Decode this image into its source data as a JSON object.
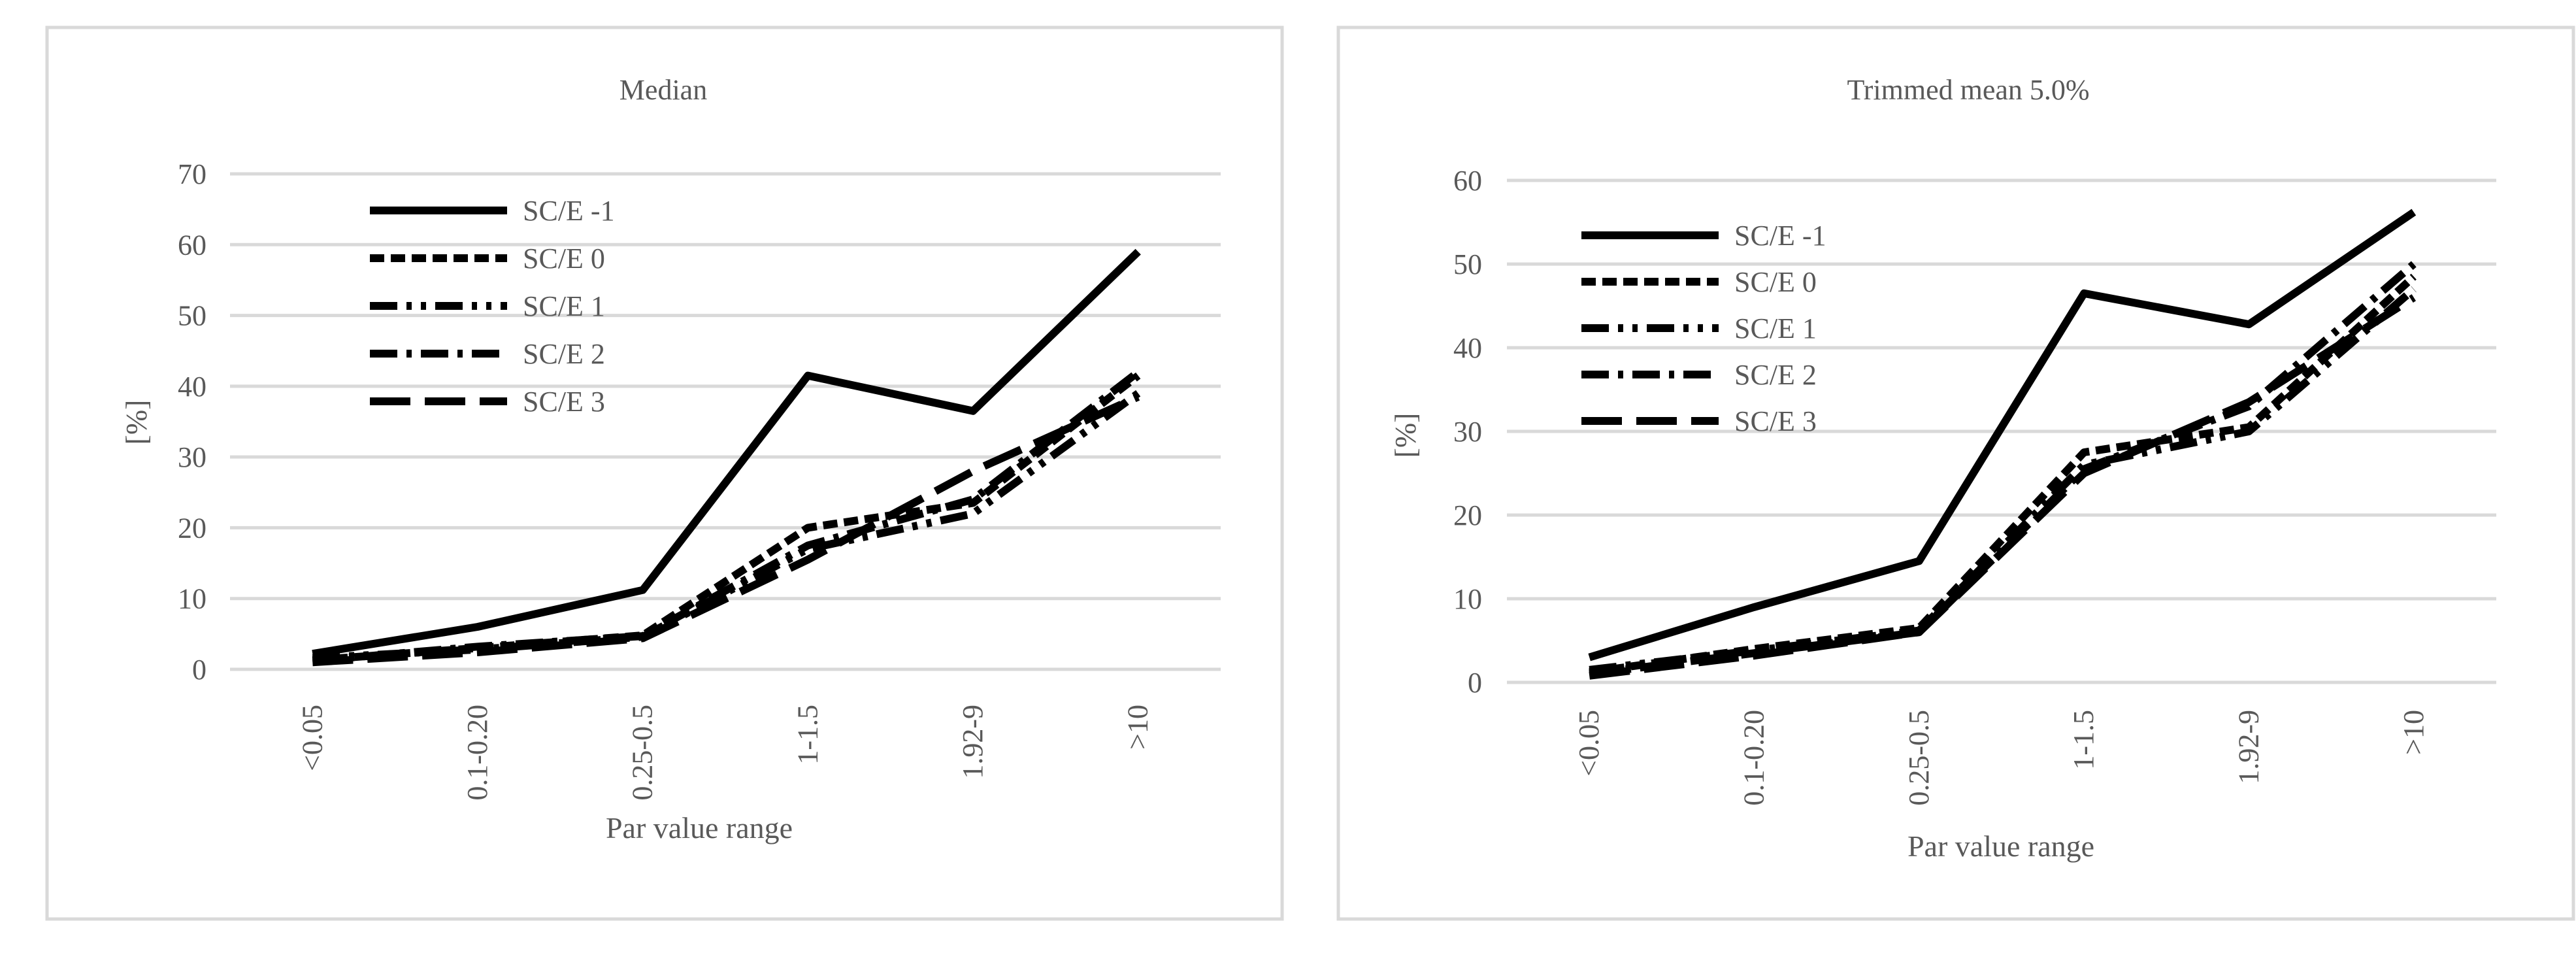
{
  "chart_data": [
    {
      "type": "line",
      "title": "Median",
      "xlabel": "Par value range",
      "ylabel": "[%]",
      "categories": [
        "<0.05",
        "0.1-0.20",
        "0.25-0.5",
        "1-1.5",
        "1.92-9",
        ">10"
      ],
      "ylim": [
        0,
        70
      ],
      "yticks": [
        "0",
        "10",
        "20",
        "30",
        "40",
        "50",
        "60",
        "70"
      ],
      "grid": true,
      "legend_position": "top-left",
      "series": [
        {
          "name": "SC/E -1",
          "dash": "solid",
          "values": [
            2.2,
            6.0,
            11.2,
            41.5,
            36.5,
            59.0
          ]
        },
        {
          "name": "SC/E 0",
          "dash": "short-dash",
          "values": [
            1.3,
            3.0,
            4.8,
            20.0,
            23.5,
            41.5
          ]
        },
        {
          "name": "SC/E 1",
          "dash": "dash-dot-dot",
          "values": [
            1.6,
            2.8,
            4.6,
            17.0,
            22.0,
            39.0
          ]
        },
        {
          "name": "SC/E 2",
          "dash": "dash-dot",
          "values": [
            1.2,
            3.2,
            4.7,
            17.5,
            24.0,
            42.0
          ]
        },
        {
          "name": "SC/E 3",
          "dash": "long-dash",
          "values": [
            1.0,
            2.4,
            4.4,
            15.5,
            28.0,
            38.5
          ]
        }
      ]
    },
    {
      "type": "line",
      "title": "Trimmed mean 5.0%",
      "xlabel": "Par value range",
      "ylabel": "[%]",
      "categories": [
        "<0.05",
        "0.1-0.20",
        "0.25-0.5",
        "1-1.5",
        "1.92-9",
        ">10"
      ],
      "ylim": [
        0,
        60
      ],
      "yticks": [
        "0",
        "10",
        "20",
        "30",
        "40",
        "50",
        "60"
      ],
      "grid": true,
      "legend_position": "top-left",
      "series": [
        {
          "name": "SC/E -1",
          "dash": "solid",
          "values": [
            3.0,
            9.0,
            14.5,
            46.5,
            42.8,
            56.2
          ]
        },
        {
          "name": "SC/E 0",
          "dash": "short-dash",
          "values": [
            1.2,
            4.0,
            6.5,
            27.5,
            30.5,
            48.5
          ]
        },
        {
          "name": "SC/E 1",
          "dash": "dash-dot-dot",
          "values": [
            1.5,
            3.8,
            6.2,
            26.0,
            30.0,
            47.0
          ]
        },
        {
          "name": "SC/E 2",
          "dash": "dash-dot",
          "values": [
            1.0,
            3.5,
            6.0,
            25.5,
            33.0,
            50.0
          ]
        },
        {
          "name": "SC/E 3",
          "dash": "long-dash",
          "values": [
            0.8,
            3.2,
            6.0,
            25.0,
            33.5,
            46.0
          ]
        }
      ]
    }
  ]
}
